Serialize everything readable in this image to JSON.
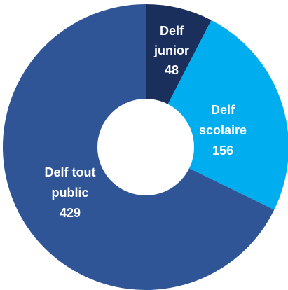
{
  "chart_data": {
    "type": "pie",
    "donut": true,
    "title": "",
    "slices": [
      {
        "label": "Delf junior",
        "label_lines": [
          "Delf",
          "junior"
        ],
        "value": 48,
        "display_value": "48",
        "color": "#1b2f5c"
      },
      {
        "label": "Delf scolaire",
        "label_lines": [
          "Delf",
          "scolaire"
        ],
        "value": 156,
        "display_value": "156",
        "color": "#00adef"
      },
      {
        "label": "Delf tout public",
        "label_lines": [
          "Delf tout",
          "public"
        ],
        "value": 429,
        "display_value": "429",
        "color": "#2f5597"
      }
    ],
    "start_angle_degrees": 0,
    "direction": "clockwise"
  }
}
